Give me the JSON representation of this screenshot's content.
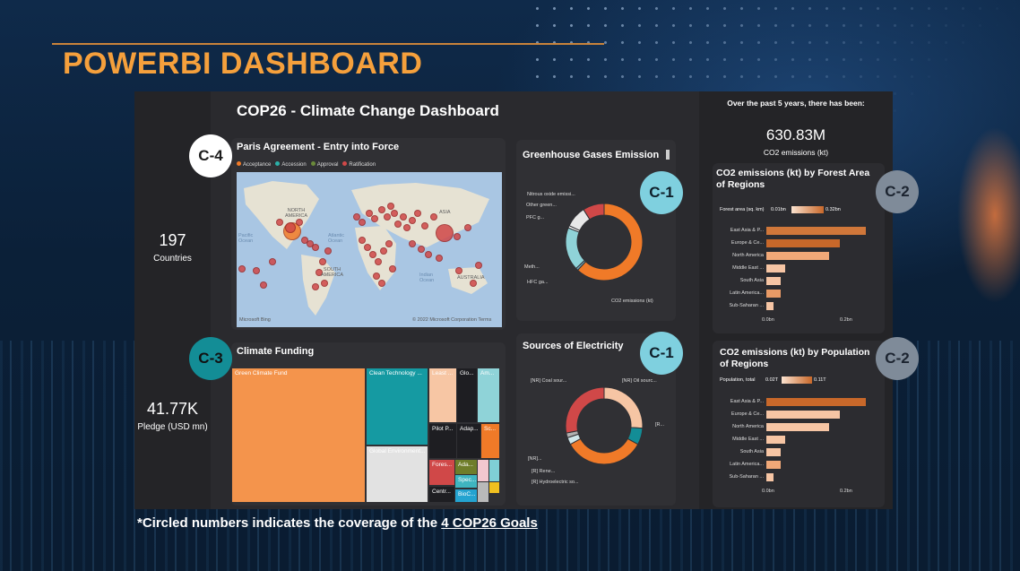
{
  "page": {
    "title": "POWERBI DASHBOARD",
    "footer_text": "*Circled numbers indicates the coverage of the ",
    "footer_link": "4 COP26 Goals"
  },
  "dashboard": {
    "title": "COP26 - Climate Change Dashboard",
    "countries_value": "197",
    "countries_label": "Countries",
    "pledge_value": "41.77K",
    "pledge_label": "Pledge (USD mn)",
    "summary_heading": "Over the past 5 years, there has been:",
    "co2_value": "630.83M",
    "co2_label": "CO2 emissions (kt)"
  },
  "badges": {
    "c4": "C-4",
    "c3": "C-3",
    "c1a": "C-1",
    "c1b": "C-1",
    "c2a": "C-2",
    "c2b": "C-2"
  },
  "colors": {
    "orange": "#f07a28",
    "teal": "#7fd0d6",
    "dark_teal": "#138d96",
    "gray_blue": "#7f8b99",
    "salmon": "#f6c5a4",
    "bar_dark": "#c8682a",
    "bar_light": "#f0a878"
  },
  "map": {
    "title": "Paris Agreement - Entry into Force",
    "legend": [
      {
        "label": "Acceptance",
        "color": "#f07a28"
      },
      {
        "label": "Accession",
        "color": "#2bb0a8"
      },
      {
        "label": "Approval",
        "color": "#6a8a3a"
      },
      {
        "label": "Ratification",
        "color": "#d04848"
      }
    ],
    "labels": {
      "north_america": "NORTH\nAMERICA",
      "asia": "ASIA",
      "south_america": "SOUTH\nAMERICA",
      "australia": "AUSTRALIA",
      "pacific": "Pacific\nOcean",
      "atlantic": "Atlantic\nOcean",
      "indian": "Indian\nOcean"
    },
    "attribution_left": "Microsoft Bing",
    "attribution_right": "© 2022 Microsoft Corporation  Terms"
  },
  "funding": {
    "title": "Climate Funding",
    "cells": [
      "Green Climate Fund",
      "Clean Technology ...",
      "Least ...",
      "Glo...",
      "Am...",
      "Pilot P...",
      "Adap...",
      "Sc...",
      "Global Environment...",
      "Fores...",
      "Ada...",
      "Spec...",
      "Centr...",
      "BioC..."
    ]
  },
  "ghg": {
    "title": "Greenhouse Gases Emission",
    "labels": [
      "Nitrous oxide emissi...",
      "Other green...",
      "PFC g...",
      "Meth...",
      "HFC ga...",
      "CO2 emissions (kt)"
    ]
  },
  "electricity": {
    "title": "Sources of Electricity",
    "labels": [
      "[NR] Coal sour...",
      "[NR] Oil sourc...",
      "[R...",
      "[NR]...",
      "[R] Rene...",
      "[R] Hydroelectric so..."
    ]
  },
  "forest": {
    "title": "CO2 emissions (kt) by Forest Area of Regions",
    "legend_label": "Forest area (sq. km)",
    "legend_min": "0.01bn",
    "legend_max": "0.32bn",
    "axis_min": "0.0bn",
    "axis_max": "0.2bn",
    "regions": [
      "East Asia & P...",
      "Europe & Ce...",
      "North America",
      "Middle East ...",
      "South Asia",
      "Latin America...",
      "Sub-Saharan ..."
    ]
  },
  "population": {
    "title": "CO2 emissions (kt) by Population of Regions",
    "legend_label": "Population, total",
    "legend_min": "0.02T",
    "legend_max": "0.11T",
    "axis_min": "0.0bn",
    "axis_max": "0.2bn",
    "regions": [
      "East Asia & P...",
      "Europe & Ce...",
      "North America",
      "Middle East ...",
      "South Asia",
      "Latin America...",
      "Sub-Saharan ..."
    ]
  },
  "chart_data": [
    {
      "type": "pie",
      "title": "Greenhouse Gases Emission",
      "categories": [
        "CO2 emissions (kt)",
        "HFC ga...",
        "Meth...",
        "PFC g...",
        "Other green...",
        "Nitrous oxide emissi..."
      ],
      "values": [
        62,
        1,
        18,
        1,
        9,
        9
      ]
    },
    {
      "type": "pie",
      "title": "Sources of Electricity",
      "categories": [
        "[NR] Oil sourc...",
        "[R...",
        "[NR] Coal sour...",
        "[R] Hydroelectric so...",
        "[R] Rene...",
        "[NR]..."
      ],
      "values": [
        26,
        7,
        34,
        3,
        2,
        28
      ]
    },
    {
      "type": "bar",
      "title": "CO2 emissions (kt) by Forest Area of Regions",
      "categories": [
        "East Asia & P...",
        "Europe & Ce...",
        "North America",
        "Middle East ...",
        "South Asia",
        "Latin America...",
        "Sub-Saharan ..."
      ],
      "values": [
        0.27,
        0.2,
        0.17,
        0.05,
        0.04,
        0.04,
        0.02
      ],
      "xlim": [
        0,
        0.28
      ]
    },
    {
      "type": "bar",
      "title": "CO2 emissions (kt) by Population of Regions",
      "categories": [
        "East Asia & P...",
        "Europe & Ce...",
        "North America",
        "Middle East ...",
        "South Asia",
        "Latin America...",
        "Sub-Saharan ..."
      ],
      "values": [
        0.27,
        0.2,
        0.17,
        0.05,
        0.04,
        0.04,
        0.02
      ],
      "xlim": [
        0,
        0.28
      ]
    }
  ]
}
